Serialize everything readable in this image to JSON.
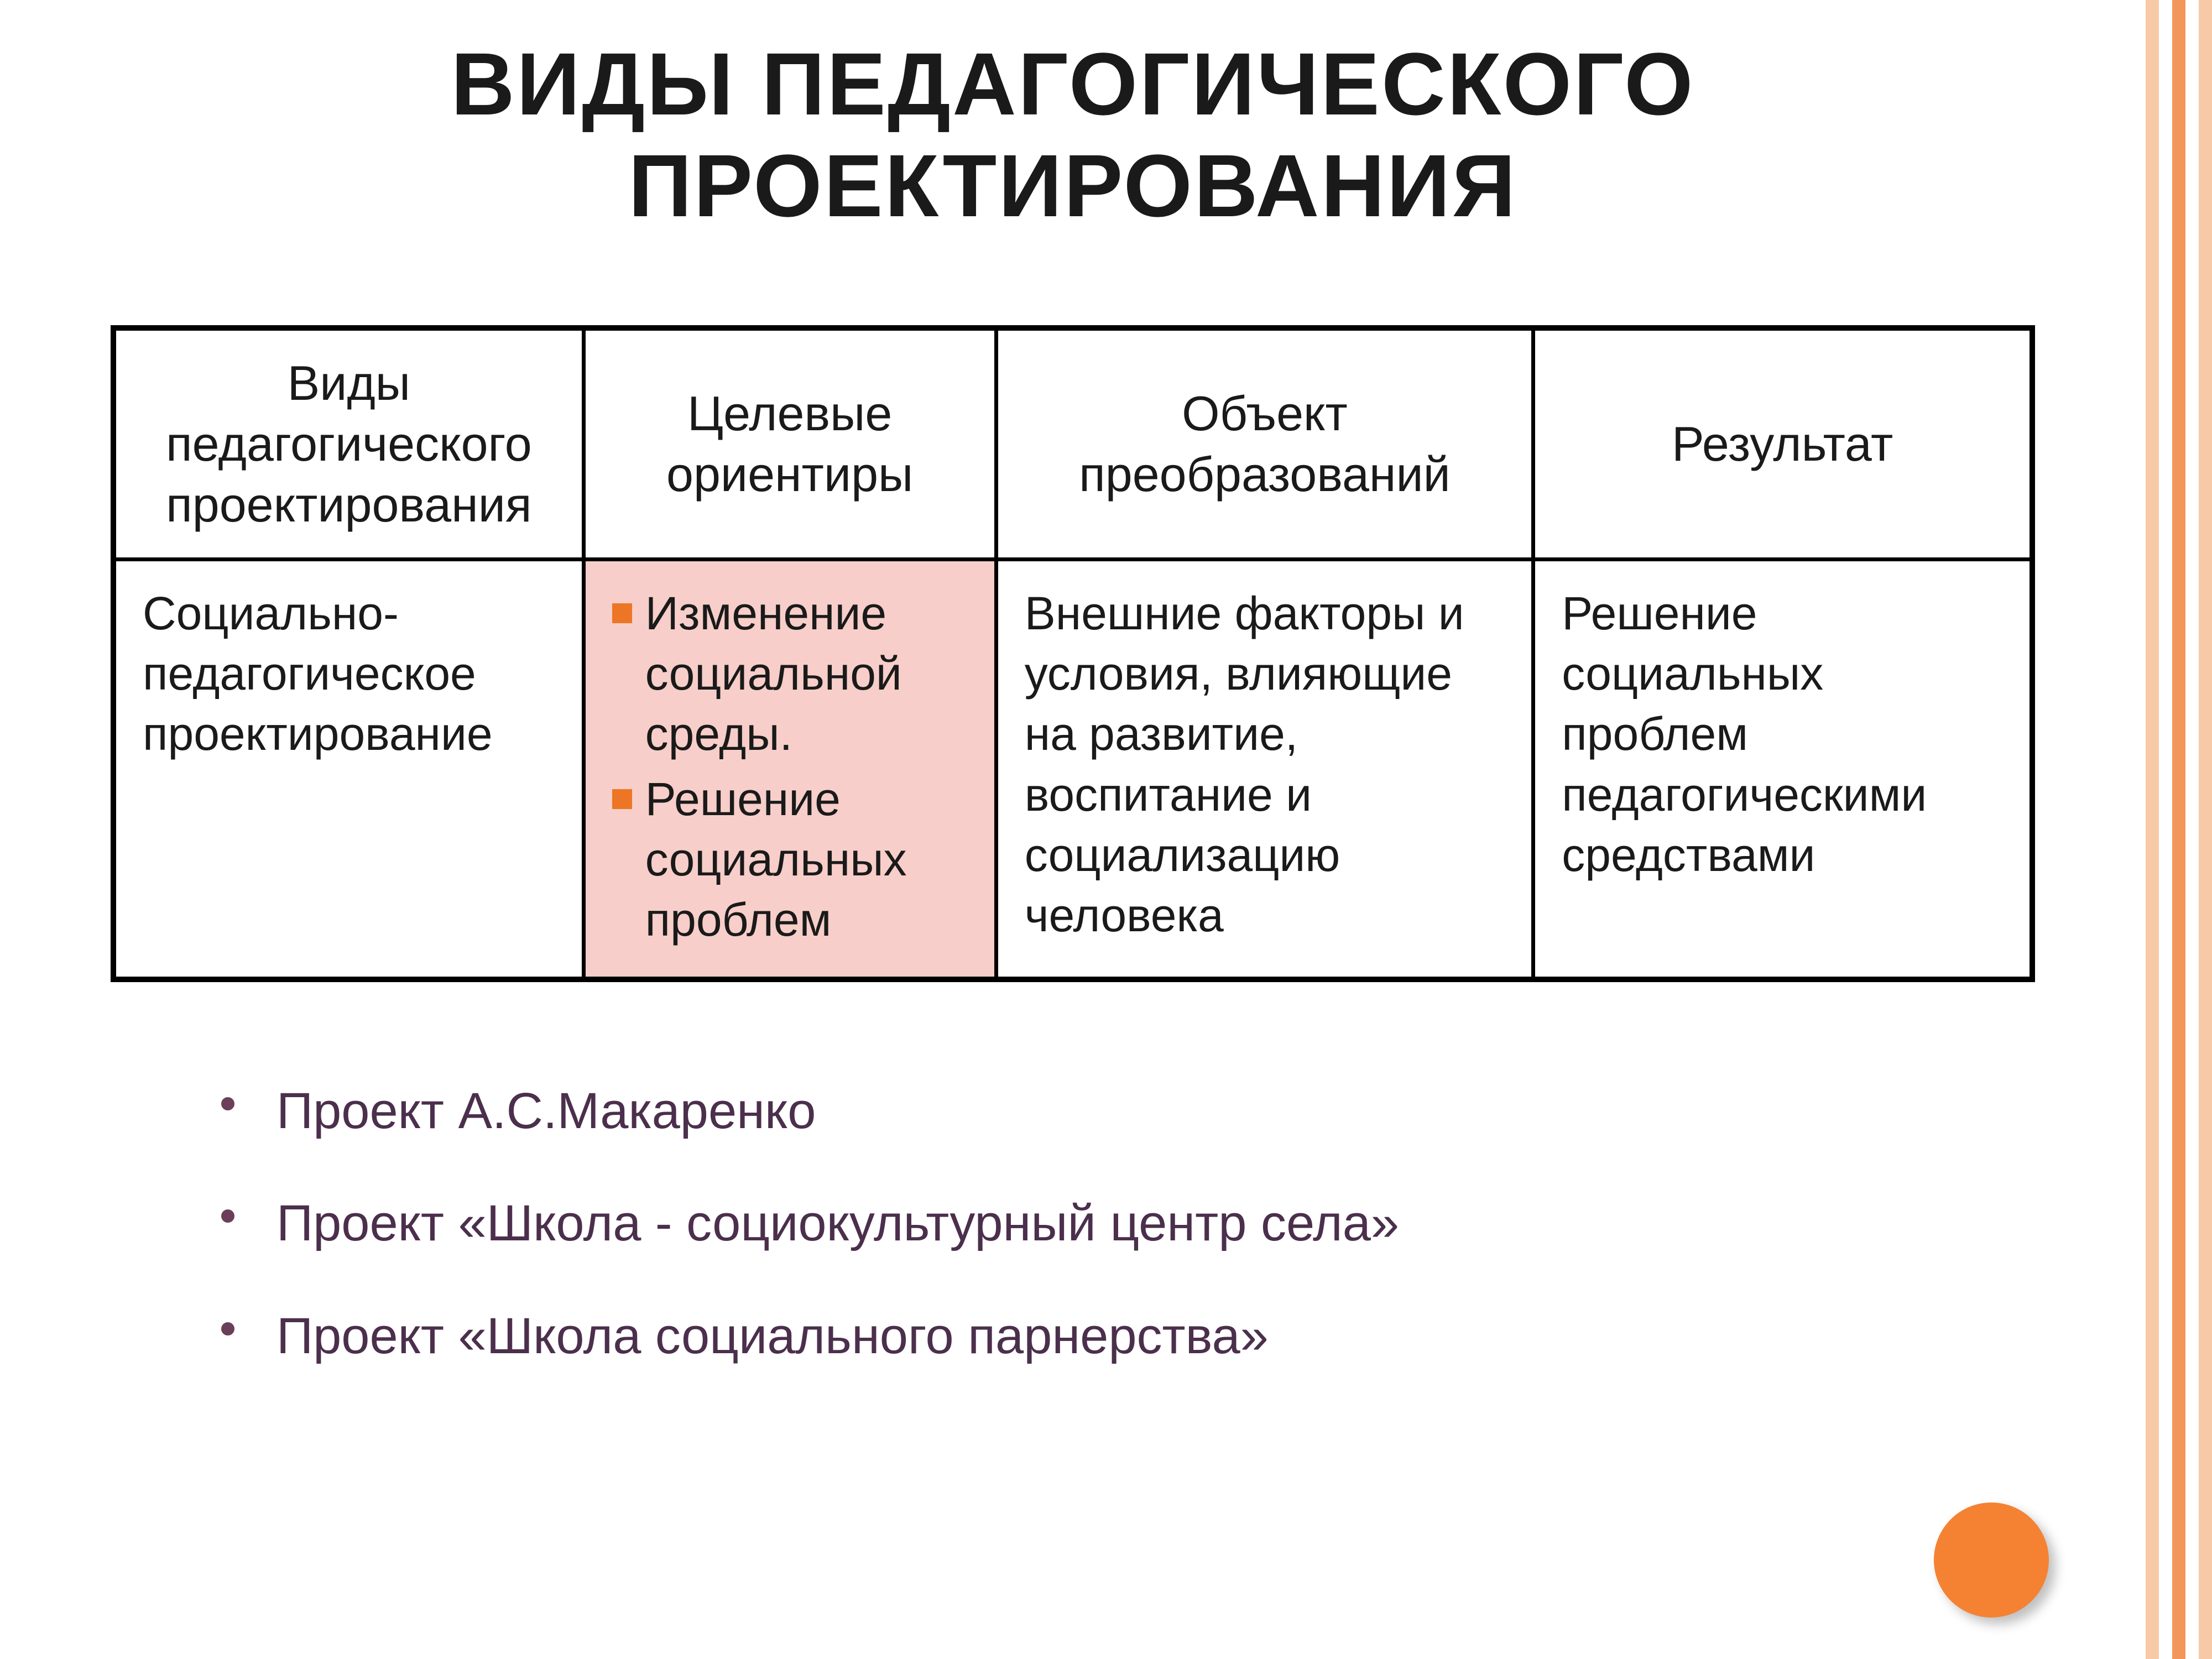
{
  "title": "ВИДЫ ПЕДАГОГИЧЕСКОГО ПРОЕКТИРОВАНИЯ",
  "table": {
    "headers": [
      "Виды педагогического проектирования",
      "Целевые ориентиры",
      "Объект преобразований",
      "Результат"
    ],
    "row": {
      "col1": "Социально-педагогическое проектирование",
      "col2": {
        "items": [
          "Изменение социальной среды.",
          "Решение социальных проблем"
        ]
      },
      "col3": "Внешние факторы и условия, влияющие на развитие, воспитание и социализацию человека",
      "col4": "Решение социальных проблем педагогическими средствами"
    }
  },
  "bullets": [
    "Проект А.С.Макаренко",
    "Проект «Школа - социокультурный центр села»",
    "Проект «Школа социального парнерства»"
  ],
  "colors": {
    "title_text": "#1a1a1a",
    "table_border": "#000000",
    "cell_text": "#1a1a1a",
    "pink_bg": "#f7cec9",
    "inner_bullet_color": "#ec7625",
    "bullet_text": "#4b2f4c",
    "bullet_dot": "#6b3f5a",
    "decoration_circle": "#f58233",
    "stripe_1": "#f8c9a6",
    "stripe_2": "#ffffff",
    "stripe_3": "#f3965c",
    "stripe_4": "#ffffff",
    "stripe_5": "#f8c9a6",
    "background": "#ffffff"
  },
  "layout": {
    "aspect_w": 4000,
    "aspect_h": 3000,
    "col_widths_pct": [
      24.5,
      21.5,
      28,
      26
    ]
  },
  "typography": {
    "title_fontsize_vw": 4.0,
    "header_fontsize_vw": 2.2,
    "cell_fontsize_vw": 2.1,
    "bullet_fontsize_vw": 2.3,
    "font_family": "Arial, sans-serif"
  }
}
